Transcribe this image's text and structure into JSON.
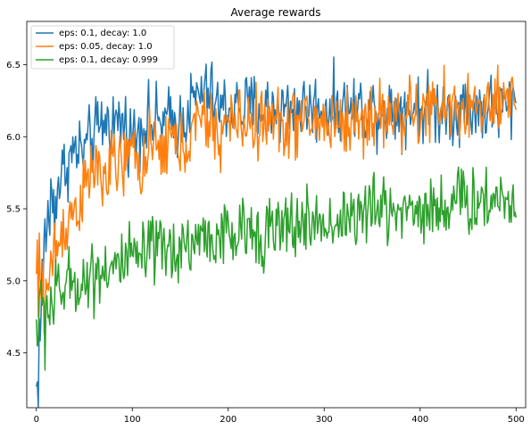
{
  "chart_data": {
    "type": "line",
    "title": "Average rewards",
    "xlabel": "",
    "ylabel": "",
    "xlim": [
      -10,
      510
    ],
    "ylim": [
      4.12,
      6.8
    ],
    "xticks": [
      0,
      100,
      200,
      300,
      400,
      500
    ],
    "yticks": [
      4.5,
      5.0,
      5.5,
      6.0,
      6.5
    ],
    "xtick_labels": [
      "0",
      "100",
      "200",
      "300",
      "400",
      "500"
    ],
    "ytick_labels": [
      "4.5",
      "5.0",
      "5.5",
      "6.0",
      "6.5"
    ],
    "grid": false,
    "legend_placement": "top-left",
    "series": [
      {
        "name": "eps: 0.1, decay: 1.0",
        "color": "#1f77b4",
        "x_start": 0,
        "x_step": 10,
        "values": [
          4.2,
          5.4,
          5.6,
          5.8,
          5.9,
          5.9,
          6.0,
          6.1,
          6.1,
          6.1,
          6.0,
          6.1,
          6.1,
          6.1,
          6.1,
          6.1,
          6.2,
          6.3,
          6.3,
          6.2,
          6.2,
          6.2,
          6.2,
          6.2,
          6.2,
          6.2,
          6.2,
          6.2,
          6.2,
          6.2,
          6.2,
          6.2,
          6.2,
          6.2,
          6.2,
          6.2,
          6.2,
          6.2,
          6.2,
          6.2,
          6.2,
          6.2,
          6.2,
          6.2,
          6.2,
          6.2,
          6.2,
          6.2,
          6.2,
          6.2,
          6.25
        ]
      },
      {
        "name": "eps: 0.05, decay: 1.0",
        "color": "#ff7f0e",
        "x_start": 0,
        "x_step": 10,
        "values": [
          5.0,
          4.9,
          5.2,
          5.4,
          5.5,
          5.6,
          5.8,
          5.7,
          5.8,
          5.8,
          5.9,
          5.8,
          5.9,
          5.9,
          6.0,
          5.9,
          6.0,
          6.1,
          6.1,
          6.0,
          6.1,
          6.1,
          6.1,
          6.1,
          6.1,
          6.1,
          6.1,
          6.1,
          6.1,
          6.1,
          6.1,
          6.1,
          6.1,
          6.1,
          6.1,
          6.15,
          6.15,
          6.15,
          6.15,
          6.15,
          6.15,
          6.2,
          6.2,
          6.2,
          6.2,
          6.2,
          6.2,
          6.2,
          6.2,
          6.2,
          6.25
        ]
      },
      {
        "name": "eps: 0.1, decay: 0.999",
        "color": "#2ca02c",
        "x_start": 0,
        "x_step": 10,
        "values": [
          4.7,
          4.8,
          4.9,
          4.95,
          5.0,
          5.0,
          5.05,
          5.1,
          5.1,
          5.1,
          5.15,
          5.15,
          5.2,
          5.2,
          5.2,
          5.25,
          5.25,
          5.3,
          5.3,
          5.3,
          5.3,
          5.3,
          5.35,
          5.35,
          5.35,
          5.35,
          5.35,
          5.4,
          5.4,
          5.4,
          5.4,
          5.4,
          5.45,
          5.45,
          5.45,
          5.5,
          5.5,
          5.5,
          5.5,
          5.5,
          5.5,
          5.5,
          5.5,
          5.55,
          5.55,
          5.55,
          5.55,
          5.55,
          5.6,
          5.55,
          5.55
        ]
      }
    ]
  }
}
